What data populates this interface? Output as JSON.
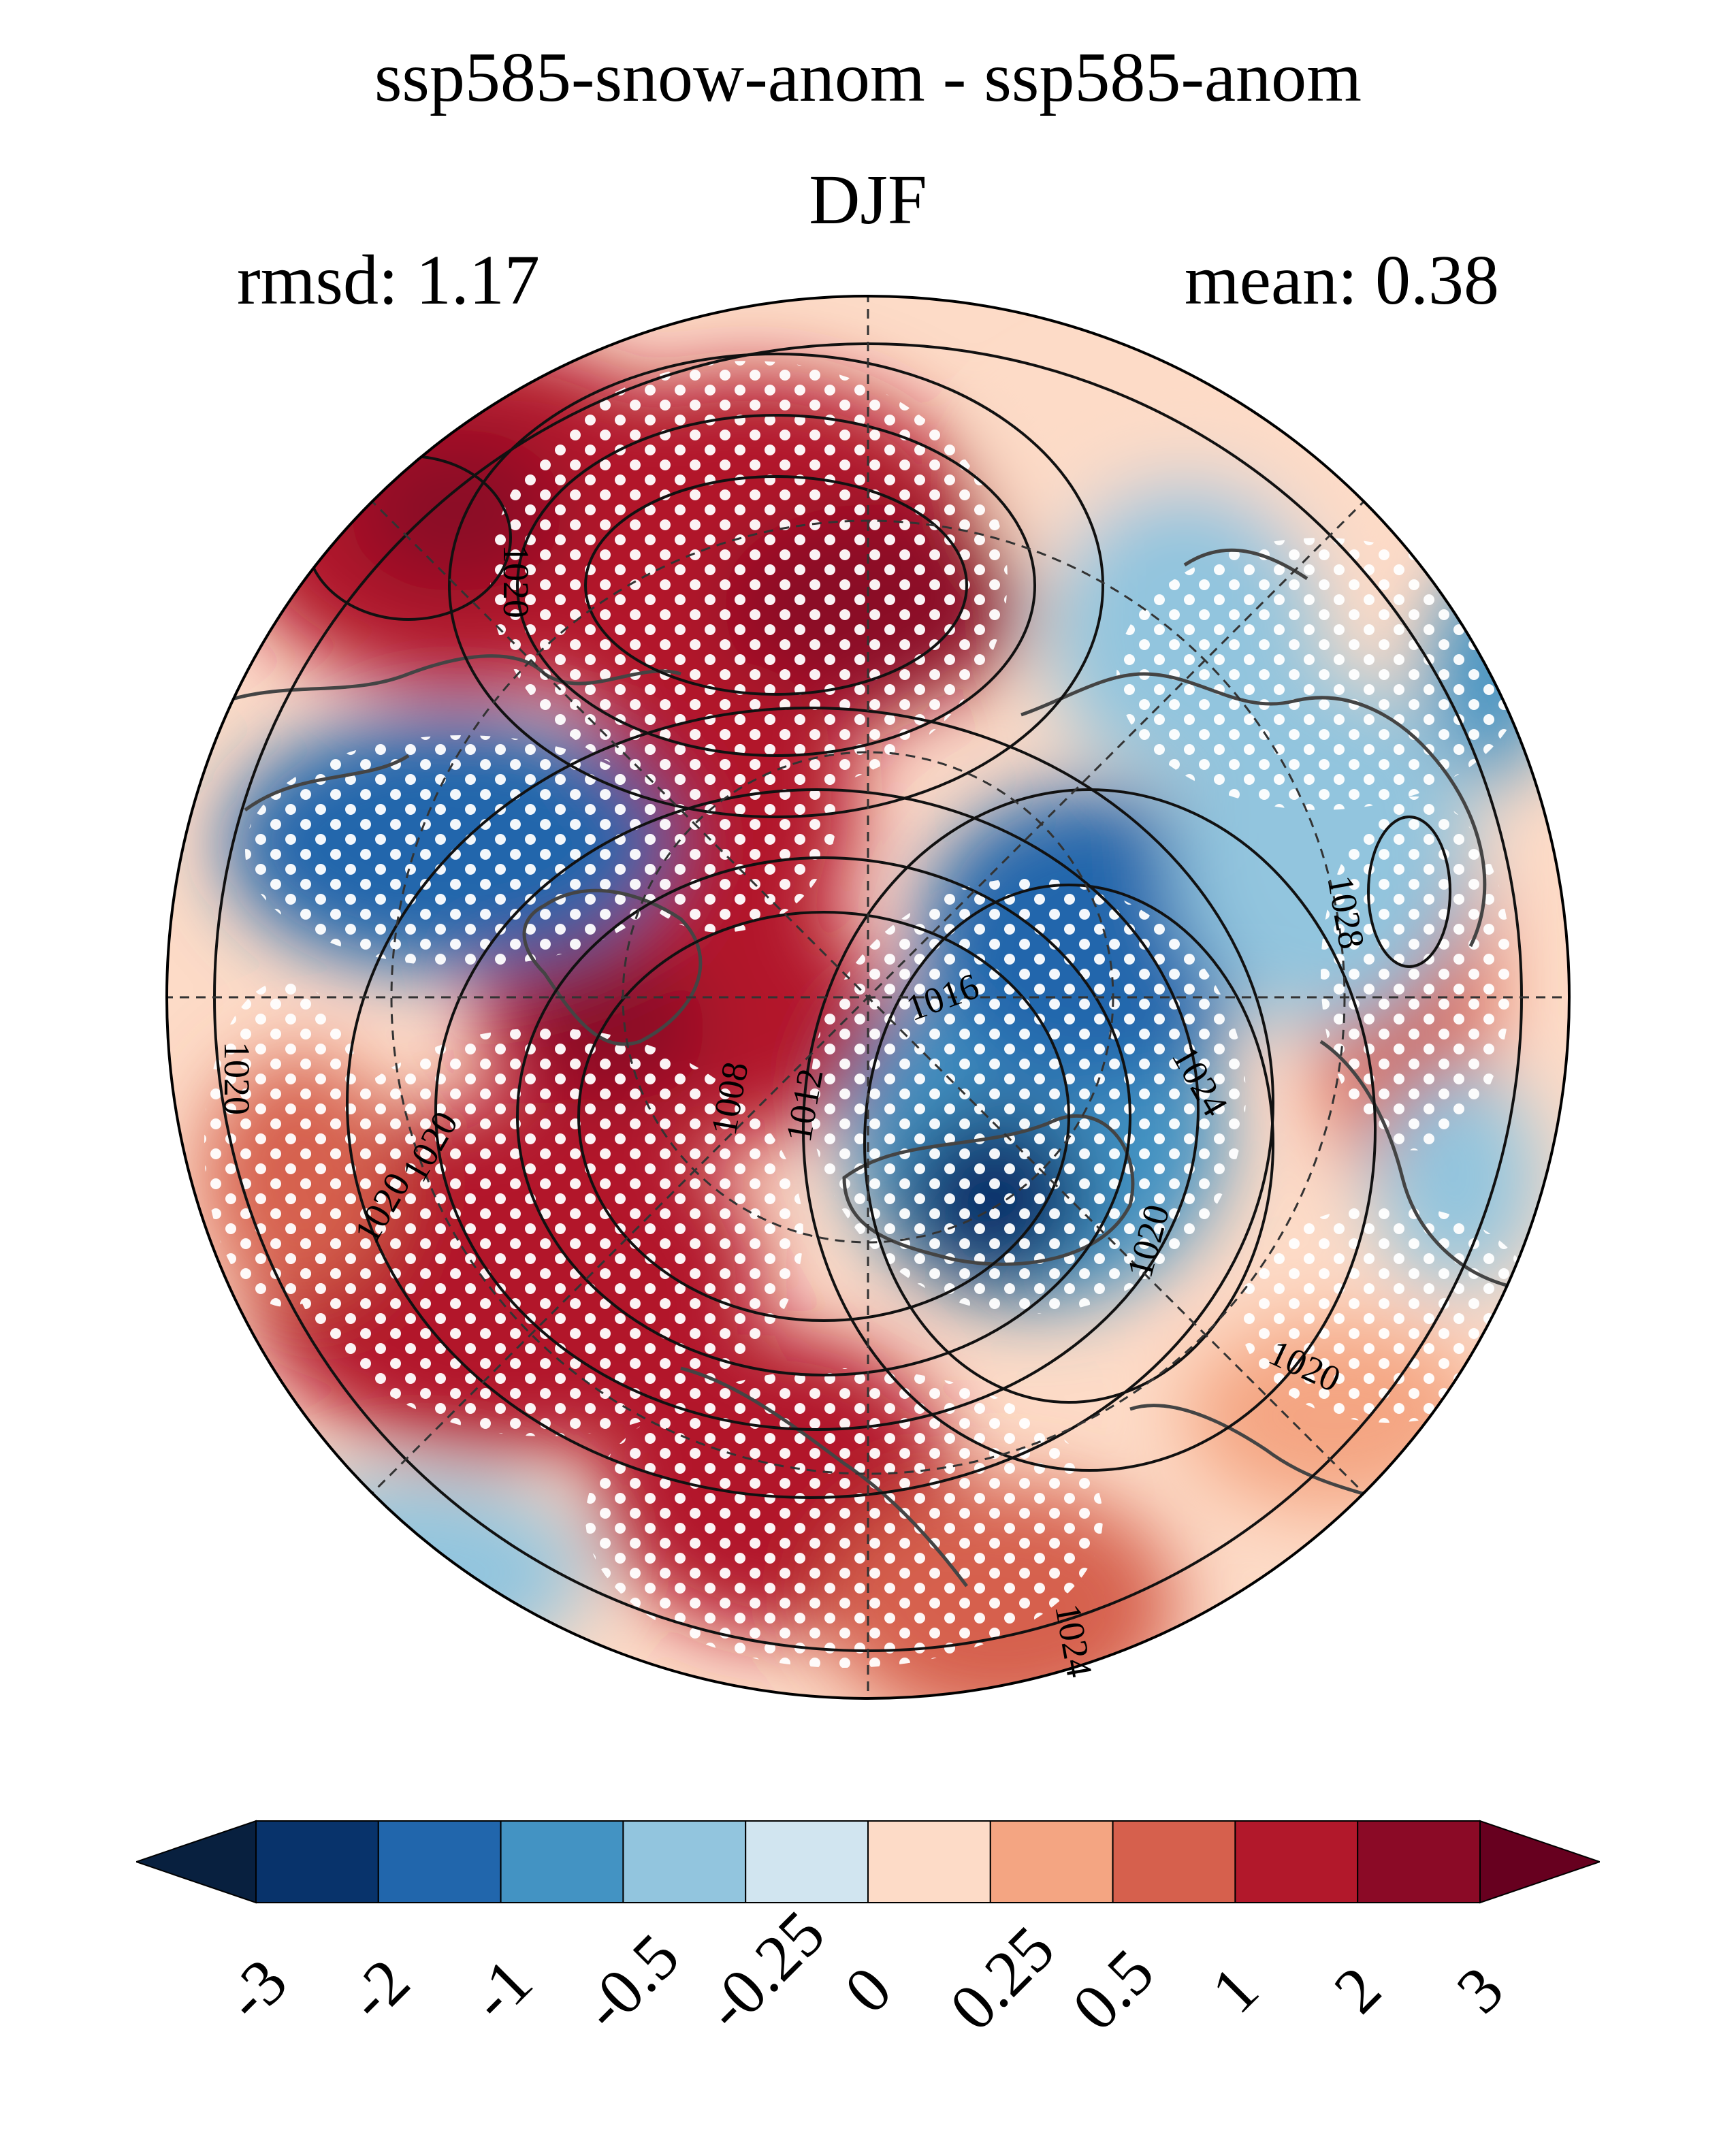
{
  "title": "ssp585-snow-anom - ssp585-anom",
  "season": "DJF",
  "rmsd_label": "rmsd: 1.17",
  "mean_label": "mean: 0.38",
  "contour_labels": [
    "1020",
    "1020",
    "1020",
    "1016",
    "1008",
    "1012",
    "1024",
    "1028",
    "1020",
    "1020",
    "1024",
    "1020"
  ],
  "colorbar": {
    "ticks": [
      "-3",
      "-2",
      "-1",
      "-0.5",
      "-0.25",
      "0",
      "0.25",
      "0.5",
      "1",
      "2",
      "3"
    ],
    "colors": [
      "#08203f",
      "#08336b",
      "#2166ac",
      "#4393c3",
      "#92c5de",
      "#d1e5f0",
      "#fddbc7",
      "#f4a582",
      "#d6604d",
      "#b2182b",
      "#8b0a26",
      "#67001f"
    ]
  },
  "colors": {
    "land_outline": "#444444",
    "contour": "#111111",
    "stipple": "#ffffff"
  }
}
